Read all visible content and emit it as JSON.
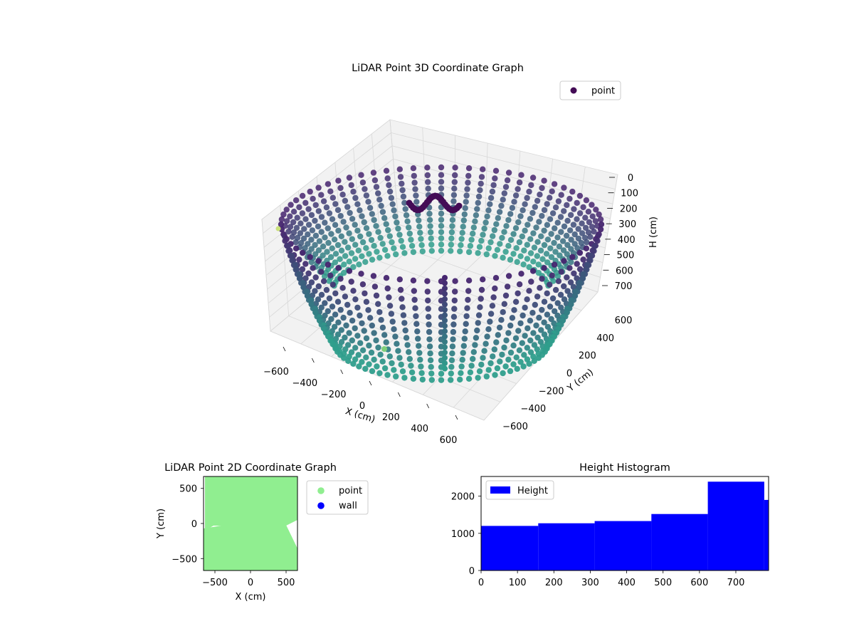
{
  "colors": {
    "cloud_near": "#2f9e8c",
    "cloud_far": "#46256f",
    "cloud_dark": "#440c56",
    "outlier": "#7fd07a",
    "pane": "#f2f2f2",
    "pane_grid": "#d8d8d8",
    "point_2d": "#90ee90",
    "wall_2d": "#0000ff",
    "hist": "#0000ff"
  },
  "chart_data": [
    {
      "type": "scatter",
      "title": "LiDAR Point 3D Coordinate Graph",
      "xlabel": "X (cm)",
      "ylabel": "Y (cm)",
      "zlabel": "H (cm)",
      "x_ticks": [
        "−600",
        "−400",
        "−200",
        "0",
        "200",
        "400",
        "600"
      ],
      "y_ticks": [
        "−600",
        "−400",
        "−200",
        "0",
        "200",
        "400",
        "600"
      ],
      "z_ticks": [
        "0",
        "100",
        "200",
        "300",
        "400",
        "500",
        "600",
        "700"
      ],
      "xlim": [
        -650,
        650
      ],
      "ylim": [
        -650,
        650
      ],
      "zlim": [
        0,
        780
      ],
      "z_inverted": true,
      "legend": [
        "point"
      ],
      "legend_placement": "top-right",
      "grid": true,
      "colormap": "viridis",
      "description_shape": "bowl-shaped point cloud"
    },
    {
      "type": "scatter",
      "title": "LiDAR Point 2D Coordinate Graph",
      "xlabel": "X (cm)",
      "ylabel": "Y (cm)",
      "x_ticks": [
        "−500",
        "0",
        "500"
      ],
      "y_ticks": [
        "500",
        "0",
        "−500"
      ],
      "xlim": [
        -660,
        660
      ],
      "ylim": [
        -670,
        670
      ],
      "legend": [
        "point",
        "wall"
      ],
      "legend_placement": "outside-right",
      "grid": false
    },
    {
      "type": "bar",
      "title": "Height Histogram",
      "legend": [
        "Height"
      ],
      "legend_placement": "top-left",
      "x_ticks": [
        "0",
        "100",
        "200",
        "300",
        "400",
        "500",
        "600",
        "700"
      ],
      "y_ticks": [
        "0",
        "1000",
        "2000"
      ],
      "xlim": [
        0,
        790
      ],
      "ylim": [
        0,
        2530
      ],
      "bins": [
        {
          "start": 0,
          "end": 157,
          "count": 1200
        },
        {
          "start": 157,
          "end": 312,
          "count": 1270
        },
        {
          "start": 312,
          "end": 468,
          "count": 1330
        },
        {
          "start": 468,
          "end": 623,
          "count": 1520
        },
        {
          "start": 623,
          "end": 778,
          "count": 2390
        },
        {
          "start": 778,
          "end": 790,
          "count": 1900
        }
      ]
    }
  ]
}
